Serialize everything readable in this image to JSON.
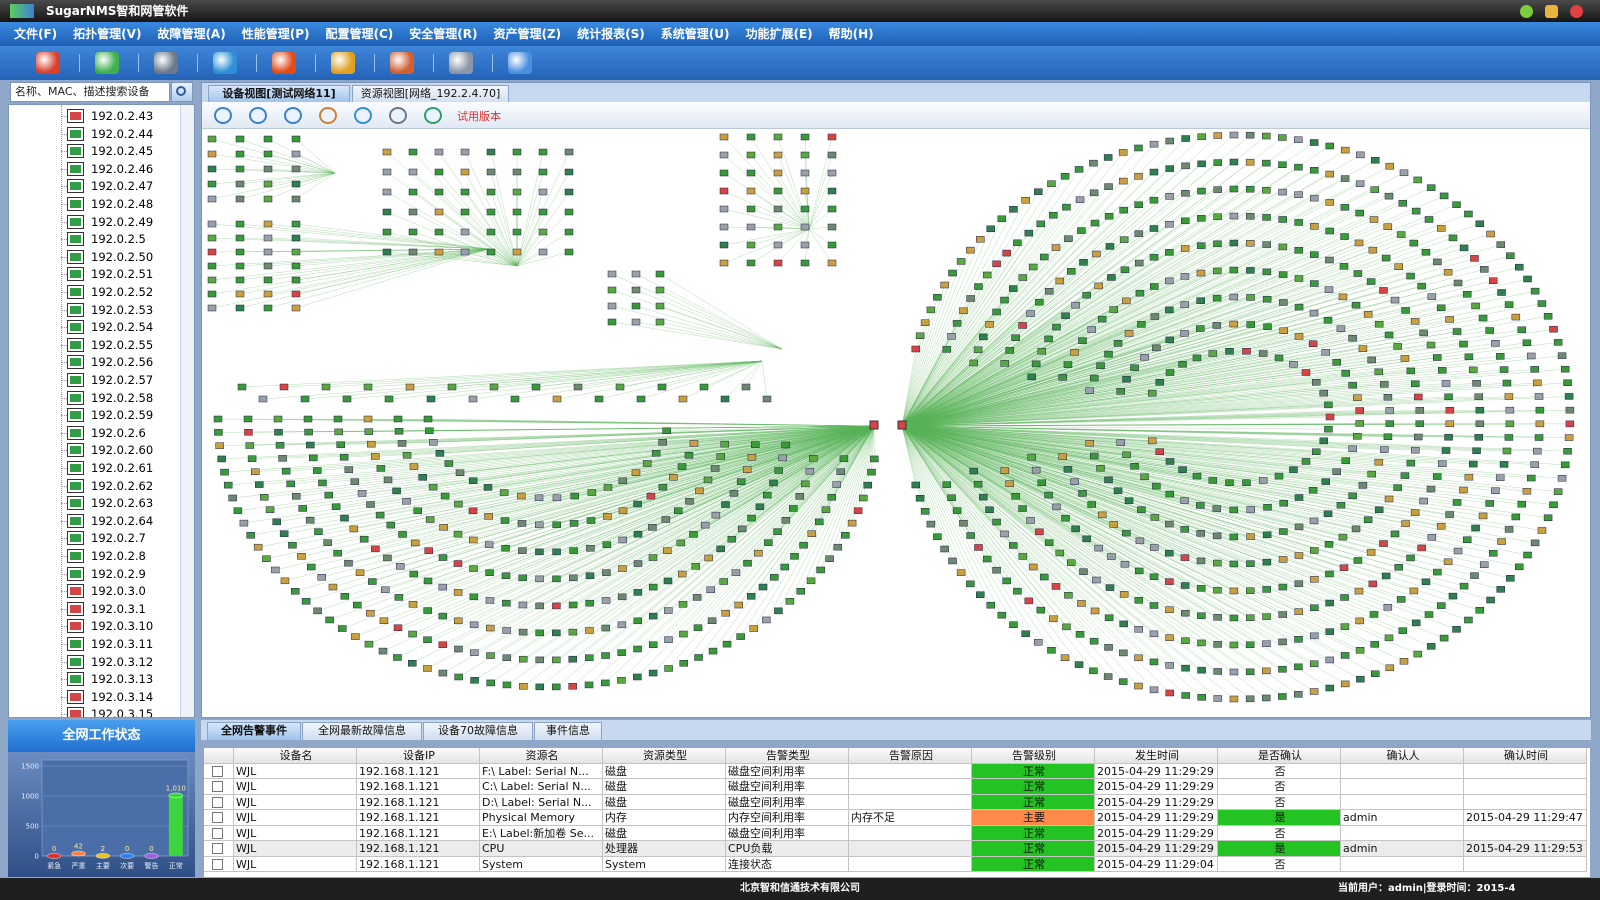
{
  "window": {
    "title": "SugarNMS智和网管软件"
  },
  "menu": [
    "文件(F)",
    "拓扑管理(V)",
    "故障管理(A)",
    "性能管理(P)",
    "配置管理(C)",
    "安全管理(R)",
    "资产管理(Z)",
    "统计报表(S)",
    "系统管理(U)",
    "功能扩展(E)",
    "帮助(H)"
  ],
  "search": {
    "placeholder": "名称、MAC、描述搜索设备"
  },
  "tree": [
    {
      "label": "192.0.2.43",
      "color": "#d64545"
    },
    {
      "label": "192.0.2.44",
      "color": "#2f9e44"
    },
    {
      "label": "192.0.2.45",
      "color": "#2f9e44"
    },
    {
      "label": "192.0.2.46",
      "color": "#2f9e44"
    },
    {
      "label": "192.0.2.47",
      "color": "#2f9e44"
    },
    {
      "label": "192.0.2.48",
      "color": "#2f9e44"
    },
    {
      "label": "192.0.2.49",
      "color": "#2f9e44"
    },
    {
      "label": "192.0.2.5",
      "color": "#2f9e44"
    },
    {
      "label": "192.0.2.50",
      "color": "#2f9e44"
    },
    {
      "label": "192.0.2.51",
      "color": "#2f9e44"
    },
    {
      "label": "192.0.2.52",
      "color": "#2f9e44"
    },
    {
      "label": "192.0.2.53",
      "color": "#2f9e44"
    },
    {
      "label": "192.0.2.54",
      "color": "#2f9e44"
    },
    {
      "label": "192.0.2.55",
      "color": "#2f9e44"
    },
    {
      "label": "192.0.2.56",
      "color": "#2f9e44"
    },
    {
      "label": "192.0.2.57",
      "color": "#2f9e44"
    },
    {
      "label": "192.0.2.58",
      "color": "#2f9e44"
    },
    {
      "label": "192.0.2.59",
      "color": "#2f9e44"
    },
    {
      "label": "192.0.2.6",
      "color": "#2f9e44"
    },
    {
      "label": "192.0.2.60",
      "color": "#2f9e44"
    },
    {
      "label": "192.0.2.61",
      "color": "#2f9e44"
    },
    {
      "label": "192.0.2.62",
      "color": "#2f9e44"
    },
    {
      "label": "192.0.2.63",
      "color": "#2f9e44"
    },
    {
      "label": "192.0.2.64",
      "color": "#2f9e44"
    },
    {
      "label": "192.0.2.7",
      "color": "#2f9e44"
    },
    {
      "label": "192.0.2.8",
      "color": "#2f9e44"
    },
    {
      "label": "192.0.2.9",
      "color": "#2f9e44"
    },
    {
      "label": "192.0.3.0",
      "color": "#d64545"
    },
    {
      "label": "192.0.3.1",
      "color": "#d64545"
    },
    {
      "label": "192.0.3.10",
      "color": "#d64545"
    },
    {
      "label": "192.0.3.11",
      "color": "#2f9e44"
    },
    {
      "label": "192.0.3.12",
      "color": "#2f9e44"
    },
    {
      "label": "192.0.3.13",
      "color": "#2f9e44"
    },
    {
      "label": "192.0.3.14",
      "color": "#d64545"
    },
    {
      "label": "192.0.3.15",
      "color": "#d64545"
    }
  ],
  "view_tabs": [
    "设备视图[测试网络11]",
    "资源视图[网络_192.2.4.70]"
  ],
  "view_toolbar": {
    "trial_label": "试用版本"
  },
  "status_panel": {
    "title": "全网工作状态",
    "chart": {
      "type": "bar",
      "categories": [
        "紧急",
        "严重",
        "主要",
        "次要",
        "警告",
        "正常"
      ],
      "values": [
        0,
        42,
        2,
        0,
        0,
        1010
      ],
      "value_labels": [
        "0",
        "42",
        "2",
        "0",
        "0",
        "1,010"
      ],
      "colors": [
        "#e03030",
        "#ff8040",
        "#f0c020",
        "#3080f0",
        "#a060e0",
        "#3cd63c"
      ],
      "ylim": [
        0,
        1600
      ],
      "yticks": [
        0,
        500,
        1000,
        1500
      ]
    }
  },
  "bottom_tabs": [
    "全网告警事件",
    "全网最新故障信息",
    "设备70故障信息",
    "事件信息"
  ],
  "table": {
    "columns": [
      "设备名",
      "设备IP",
      "资源名",
      "资源类型",
      "告警类型",
      "告警原因",
      "告警级别",
      "发生时间",
      "是否确认",
      "确认人",
      "确认时间"
    ],
    "rows": [
      {
        "cells": [
          "WJL",
          "192.168.1.121",
          "F:\\ Label:  Serial N...",
          "磁盘",
          "磁盘空间利用率",
          null,
          "正常",
          "2015-04-29 11:29:29",
          "否",
          null,
          null
        ],
        "level_color": "#22c322",
        "confirm_color": null
      },
      {
        "cells": [
          "WJL",
          "192.168.1.121",
          "C:\\ Label:  Serial N...",
          "磁盘",
          "磁盘空间利用率",
          null,
          "正常",
          "2015-04-29 11:29:29",
          "否",
          null,
          null
        ],
        "level_color": "#22c322",
        "confirm_color": null
      },
      {
        "cells": [
          "WJL",
          "192.168.1.121",
          "D:\\ Label:  Serial N...",
          "磁盘",
          "磁盘空间利用率",
          null,
          "正常",
          "2015-04-29 11:29:29",
          "否",
          null,
          null
        ],
        "level_color": "#22c322",
        "confirm_color": null
      },
      {
        "cells": [
          "WJL",
          "192.168.1.121",
          "Physical Memory",
          "内存",
          "内存空间利用率",
          "内存不足",
          "主要",
          "2015-04-29 11:29:29",
          "是",
          "admin",
          "2015-04-29 11:29:47"
        ],
        "level_color": "#ff8a4a",
        "confirm_color": "#22c322"
      },
      {
        "cells": [
          "WJL",
          "192.168.1.121",
          "E:\\ Label:新加卷  Se...",
          "磁盘",
          "磁盘空间利用率",
          null,
          "正常",
          "2015-04-29 11:29:29",
          "否",
          null,
          null
        ],
        "level_color": "#22c322",
        "confirm_color": null
      },
      {
        "cells": [
          "WJL",
          "192.168.1.121",
          "CPU",
          "处理器",
          "CPU负载",
          null,
          "正常",
          "2015-04-29 11:29:29",
          "是",
          "admin",
          "2015-04-29 11:29:53"
        ],
        "level_color": "#22c322",
        "confirm_color": "#22c322"
      },
      {
        "cells": [
          "WJL",
          "192.168.1.121",
          "System",
          "System",
          "连接状态",
          null,
          "正常",
          "2015-04-29 11:29:04",
          "否",
          null,
          null
        ],
        "level_color": "#22c322",
        "confirm_color": null
      }
    ]
  },
  "status_bar": {
    "company": "北京智和信通技术有限公司",
    "user_info": "当前用户：admin|登录时间：2015-4"
  }
}
